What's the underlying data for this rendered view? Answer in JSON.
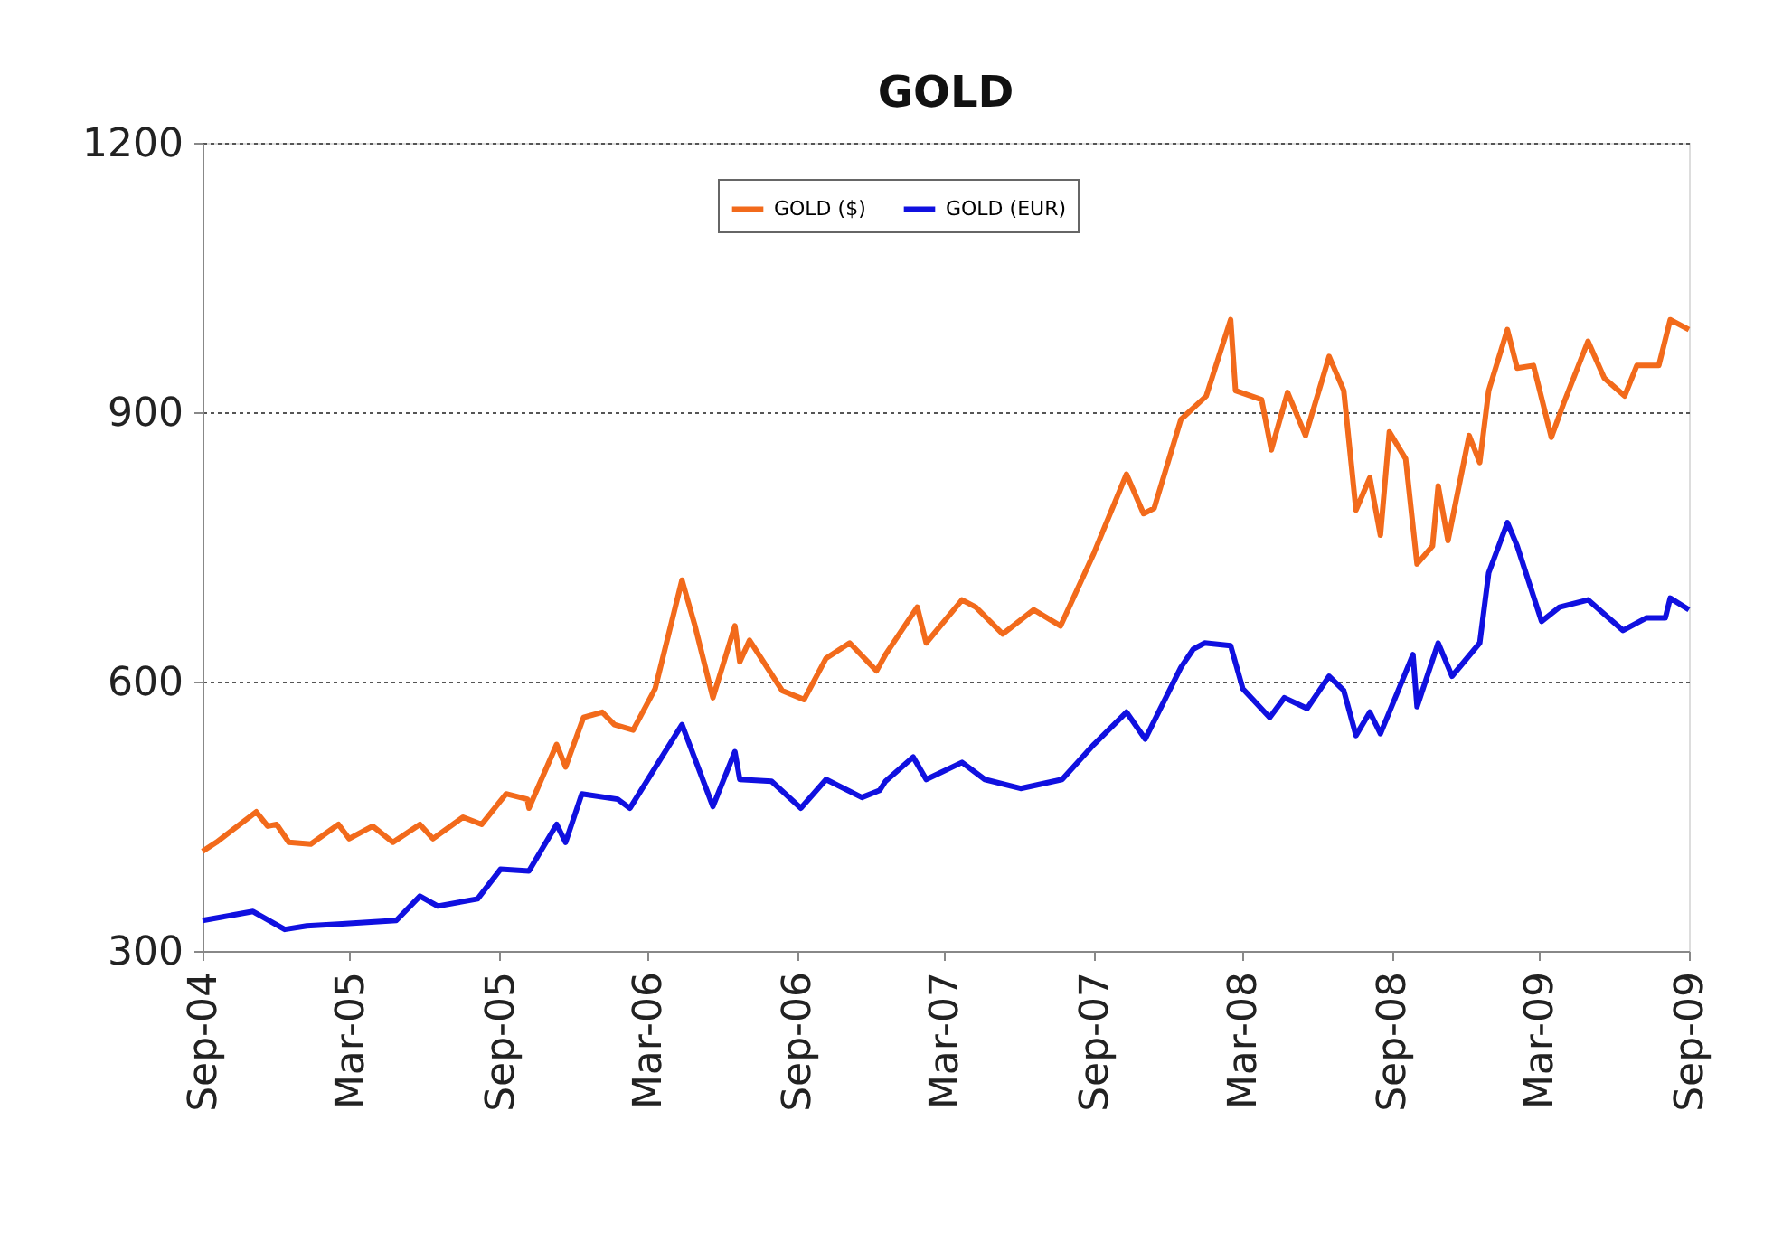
{
  "chart_data": {
    "type": "line",
    "title": "GOLD",
    "xlim": [
      "2004-09-01",
      "2009-09-01"
    ],
    "xticks": [
      {
        "value": "2004-09-01",
        "label": "Sep-04"
      },
      {
        "value": "2005-03-01",
        "label": "Mar-05"
      },
      {
        "value": "2005-09-01",
        "label": "Sep-05"
      },
      {
        "value": "2006-03-01",
        "label": "Mar-06"
      },
      {
        "value": "2006-09-01",
        "label": "Sep-06"
      },
      {
        "value": "2007-03-01",
        "label": "Mar-07"
      },
      {
        "value": "2007-09-01",
        "label": "Sep-07"
      },
      {
        "value": "2008-03-01",
        "label": "Mar-08"
      },
      {
        "value": "2008-09-01",
        "label": "Sep-08"
      },
      {
        "value": "2009-03-01",
        "label": "Mar-09"
      },
      {
        "value": "2009-09-01",
        "label": "Sep-09"
      }
    ],
    "ylim": [
      300,
      1200
    ],
    "yticks": [
      300,
      600,
      900,
      1200
    ],
    "grid": "y",
    "legend": "top",
    "line_style": "solid",
    "marker": "none",
    "series": [
      {
        "name": "GOLD ($)",
        "color": "#f26a1b",
        "x": [
          "2004-09-01",
          "2004-09-18",
          "2004-11-06",
          "2004-11-20",
          "2004-12-01",
          "2004-12-16",
          "2005-01-12",
          "2005-02-15",
          "2005-02-28",
          "2005-03-29",
          "2005-04-23",
          "2005-05-26",
          "2005-06-11",
          "2005-07-18",
          "2005-08-10",
          "2005-09-09",
          "2005-10-05",
          "2005-10-07",
          "2005-11-10",
          "2005-11-21",
          "2005-12-13",
          "2006-01-05",
          "2006-01-20",
          "2006-02-12",
          "2006-03-11",
          "2006-04-13",
          "2006-04-29",
          "2006-05-21",
          "2006-06-17",
          "2006-06-23",
          "2006-07-05",
          "2006-08-14",
          "2006-09-10",
          "2006-10-07",
          "2006-11-05",
          "2006-12-08",
          "2006-12-19",
          "2007-01-27",
          "2007-02-07",
          "2007-03-23",
          "2007-04-09",
          "2007-05-12",
          "2007-06-19",
          "2007-07-22",
          "2007-09-01",
          "2007-10-11",
          "2007-11-01",
          "2007-11-14",
          "2007-12-17",
          "2008-01-17",
          "2008-02-16",
          "2008-02-22",
          "2008-03-25",
          "2008-04-06",
          "2008-04-26",
          "2008-05-18",
          "2008-06-16",
          "2008-07-04",
          "2008-07-19",
          "2008-08-05",
          "2008-08-18",
          "2008-08-29",
          "2008-09-18",
          "2008-10-02",
          "2008-10-21",
          "2008-10-28",
          "2008-11-09",
          "2008-12-05",
          "2008-12-18",
          "2008-12-29",
          "2009-01-21",
          "2009-02-02",
          "2009-02-22",
          "2009-03-16",
          "2009-04-01",
          "2009-04-30",
          "2009-05-20",
          "2009-06-14",
          "2009-06-29",
          "2009-07-26",
          "2009-08-09",
          "2009-09-01"
        ],
        "values": [
          411,
          421,
          455,
          439,
          441,
          421,
          419,
          441,
          425,
          439,
          421,
          441,
          425,
          449,
          441,
          475,
          469,
          459,
          530,
          505,
          560,
          566,
          552,
          546,
          592,
          713,
          662,
          582,
          662,
          622,
          646,
          590,
          580,
          626,
          643,
          612,
          630,
          683,
          643,
          691,
          683,
          653,
          680,
          662,
          743,
          831,
          787,
          793,
          892,
          918,
          1003,
          924,
          914,
          858,
          922,
          874,
          962,
          924,
          791,
          827,
          763,
          878,
          848,
          731,
          751,
          818,
          757,
          874,
          844,
          924,
          992,
          949,
          952,
          872,
          912,
          979,
          938,
          918,
          952,
          952,
          1003,
          992
        ]
      },
      {
        "name": "GOLD (EUR)",
        "color": "#1010e0",
        "x": [
          "2004-09-01",
          "2004-11-02",
          "2004-12-11",
          "2005-01-07",
          "2005-02-15",
          "2005-04-27",
          "2005-05-26",
          "2005-06-17",
          "2005-08-05",
          "2005-09-02",
          "2005-10-07",
          "2005-11-10",
          "2005-11-21",
          "2005-12-11",
          "2006-01-24",
          "2006-02-08",
          "2006-04-13",
          "2006-05-21",
          "2006-06-17",
          "2006-06-23",
          "2006-08-01",
          "2006-09-06",
          "2006-10-07",
          "2006-11-20",
          "2006-12-12",
          "2006-12-19",
          "2007-01-22",
          "2007-02-07",
          "2007-03-23",
          "2007-04-20",
          "2007-06-03",
          "2007-07-24",
          "2007-09-01",
          "2007-10-11",
          "2007-11-03",
          "2007-12-17",
          "2008-01-01",
          "2008-01-15",
          "2008-02-16",
          "2008-03-02",
          "2008-04-04",
          "2008-04-22",
          "2008-05-20",
          "2008-06-16",
          "2008-07-04",
          "2008-07-19",
          "2008-08-05",
          "2008-08-18",
          "2008-09-27",
          "2008-10-02",
          "2008-10-28",
          "2008-11-14",
          "2008-12-18",
          "2008-12-29",
          "2009-01-21",
          "2009-02-02",
          "2009-03-04",
          "2009-03-26",
          "2009-04-30",
          "2009-06-12",
          "2009-07-11",
          "2009-08-03",
          "2009-08-09",
          "2009-09-01"
        ],
        "values": [
          334,
          344,
          324,
          328,
          330,
          334,
          361,
          350,
          358,
          391,
          389,
          441,
          421,
          475,
          469,
          459,
          552,
          461,
          522,
          491,
          489,
          459,
          491,
          471,
          479,
          489,
          516,
          491,
          510,
          491,
          481,
          491,
          530,
          566,
          536,
          616,
          636,
          643,
          640,
          592,
          560,
          582,
          570,
          606,
          590,
          540,
          566,
          542,
          630,
          572,
          643,
          606,
          643,
          721,
          777,
          751,
          667,
          683,
          691,
          657,
          671,
          671,
          693,
          680
        ]
      }
    ]
  }
}
